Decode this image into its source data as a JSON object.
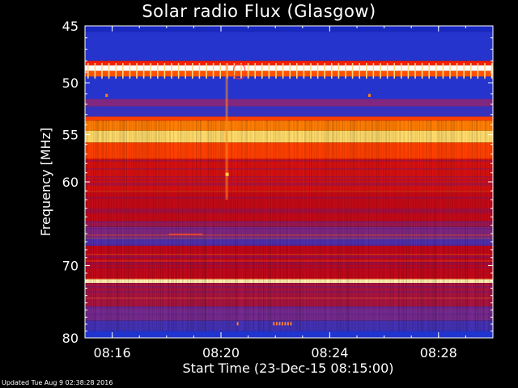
{
  "chart_data": {
    "type": "heatmap",
    "title": "Solar radio Flux (Glasgow)",
    "xlabel": "Start Time (23-Dec-15 08:15:00)",
    "ylabel": "Frequency [MHz]",
    "x_ticks": [
      "08:16",
      "08:20",
      "08:24",
      "08:28"
    ],
    "y_ticks": [
      "45",
      "50",
      "55",
      "60",
      "70",
      "80"
    ],
    "xlim": [
      "08:15:00",
      "08:30:00"
    ],
    "ylim": [
      45,
      80
    ],
    "colormap": [
      "#0a0a9e",
      "#2035d0",
      "#7a2a8a",
      "#c0081a",
      "#ff2200",
      "#ff7a00",
      "#ffe070",
      "#ffffff"
    ],
    "intensity_bands": [
      {
        "f_start": 45.0,
        "f_end": 45.5,
        "level": 0.1
      },
      {
        "f_start": 45.5,
        "f_end": 48.0,
        "level": 0.15
      },
      {
        "f_start": 48.0,
        "f_end": 48.4,
        "level": 0.55
      },
      {
        "f_start": 48.4,
        "f_end": 48.9,
        "level": 1.0
      },
      {
        "f_start": 48.9,
        "f_end": 49.4,
        "level": 0.65
      },
      {
        "f_start": 49.4,
        "f_end": 51.5,
        "level": 0.15
      },
      {
        "f_start": 51.5,
        "f_end": 52.2,
        "level": 0.3
      },
      {
        "f_start": 52.2,
        "f_end": 53.2,
        "level": 0.18
      },
      {
        "f_start": 53.2,
        "f_end": 53.6,
        "level": 0.62
      },
      {
        "f_start": 53.6,
        "f_end": 54.6,
        "level": 0.72
      },
      {
        "f_start": 54.6,
        "f_end": 55.8,
        "level": 0.85
      },
      {
        "f_start": 55.8,
        "f_end": 57.5,
        "level": 0.62
      },
      {
        "f_start": 57.5,
        "f_end": 61.0,
        "level": 0.48
      },
      {
        "f_start": 61.0,
        "f_end": 64.5,
        "level": 0.44
      },
      {
        "f_start": 64.5,
        "f_end": 65.2,
        "level": 0.36
      },
      {
        "f_start": 65.2,
        "f_end": 66.5,
        "level": 0.3
      },
      {
        "f_start": 66.5,
        "f_end": 67.5,
        "level": 0.22
      },
      {
        "f_start": 67.5,
        "f_end": 71.8,
        "level": 0.43
      },
      {
        "f_start": 71.8,
        "f_end": 72.3,
        "level": 0.92
      },
      {
        "f_start": 72.3,
        "f_end": 75.5,
        "level": 0.38
      },
      {
        "f_start": 75.5,
        "f_end": 77.5,
        "level": 0.28
      },
      {
        "f_start": 77.5,
        "f_end": 79.0,
        "level": 0.2
      },
      {
        "f_start": 79.0,
        "f_end": 80.0,
        "level": 0.14
      }
    ]
  },
  "footer": {
    "updated": "Updated Tue Aug  9 02:38:28 2016"
  }
}
